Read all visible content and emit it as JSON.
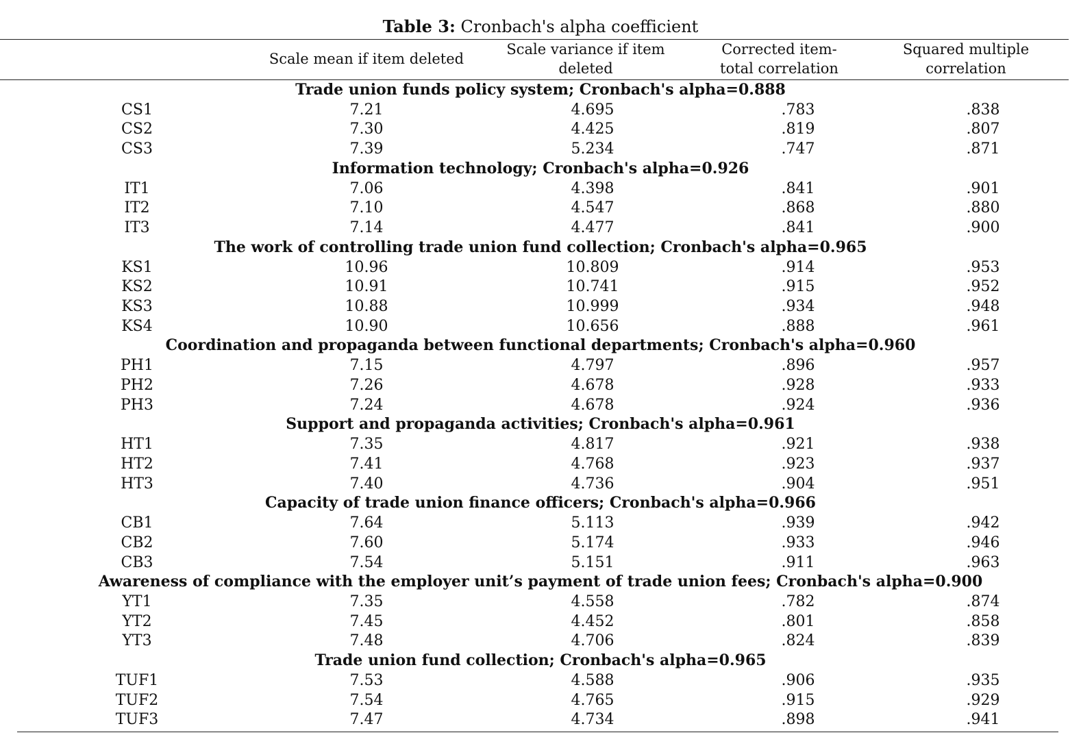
{
  "caption": {
    "label": "Table 3:",
    "text": " Cronbach's alpha coefficient"
  },
  "headers": [
    "Scale mean if item deleted",
    "Scale variance if item deleted",
    "Corrected item-total correlation",
    "Squared multiple correlation"
  ],
  "sections": [
    {
      "title": "Trade union funds policy system; Cronbach's alpha=0.888",
      "rows": [
        [
          "CS1",
          "7.21",
          "4.695",
          ".783",
          ".838"
        ],
        [
          "CS2",
          "7.30",
          "4.425",
          ".819",
          ".807"
        ],
        [
          "CS3",
          "7.39",
          "5.234",
          ".747",
          ".871"
        ]
      ]
    },
    {
      "title": "Information technology; Cronbach's alpha=0.926",
      "rows": [
        [
          "IT1",
          "7.06",
          "4.398",
          ".841",
          ".901"
        ],
        [
          "IT2",
          "7.10",
          "4.547",
          ".868",
          ".880"
        ],
        [
          "IT3",
          "7.14",
          "4.477",
          ".841",
          ".900"
        ]
      ]
    },
    {
      "title": "The work of controlling trade union fund collection; Cronbach's alpha=0.965",
      "rows": [
        [
          "KS1",
          "10.96",
          "10.809",
          ".914",
          ".953"
        ],
        [
          "KS2",
          "10.91",
          "10.741",
          ".915",
          ".952"
        ],
        [
          "KS3",
          "10.88",
          "10.999",
          ".934",
          ".948"
        ],
        [
          "KS4",
          "10.90",
          "10.656",
          ".888",
          ".961"
        ]
      ]
    },
    {
      "title": "Coordination and propaganda between functional departments; Cronbach's alpha=0.960",
      "rows": [
        [
          "PH1",
          "7.15",
          "4.797",
          ".896",
          ".957"
        ],
        [
          "PH2",
          "7.26",
          "4.678",
          ".928",
          ".933"
        ],
        [
          "PH3",
          "7.24",
          "4.678",
          ".924",
          ".936"
        ]
      ]
    },
    {
      "title": "Support and propaganda activities; Cronbach's alpha=0.961",
      "rows": [
        [
          "HT1",
          "7.35",
          "4.817",
          ".921",
          ".938"
        ],
        [
          "HT2",
          "7.41",
          "4.768",
          ".923",
          ".937"
        ],
        [
          "HT3",
          "7.40",
          "4.736",
          ".904",
          ".951"
        ]
      ]
    },
    {
      "title": "Capacity of trade union finance officers; Cronbach's alpha=0.966",
      "rows": [
        [
          "CB1",
          "7.64",
          "5.113",
          ".939",
          ".942"
        ],
        [
          "CB2",
          "7.60",
          "5.174",
          ".933",
          ".946"
        ],
        [
          "CB3",
          "7.54",
          "5.151",
          ".911",
          ".963"
        ]
      ]
    },
    {
      "title": "Awareness of compliance with the employer unit’s payment of trade union fees; Cronbach's alpha=0.900",
      "rows": [
        [
          "YT1",
          "7.35",
          "4.558",
          ".782",
          ".874"
        ],
        [
          "YT2",
          "7.45",
          "4.452",
          ".801",
          ".858"
        ],
        [
          "YT3",
          "7.48",
          "4.706",
          ".824",
          ".839"
        ]
      ]
    },
    {
      "title": "Trade union fund collection; Cronbach's alpha=0.965",
      "rows": [
        [
          "TUF1",
          "7.53",
          "4.588",
          ".906",
          ".935"
        ],
        [
          "TUF2",
          "7.54",
          "4.765",
          ".915",
          ".929"
        ],
        [
          "TUF3",
          "7.47",
          "4.734",
          ".898",
          ".941"
        ]
      ]
    }
  ]
}
